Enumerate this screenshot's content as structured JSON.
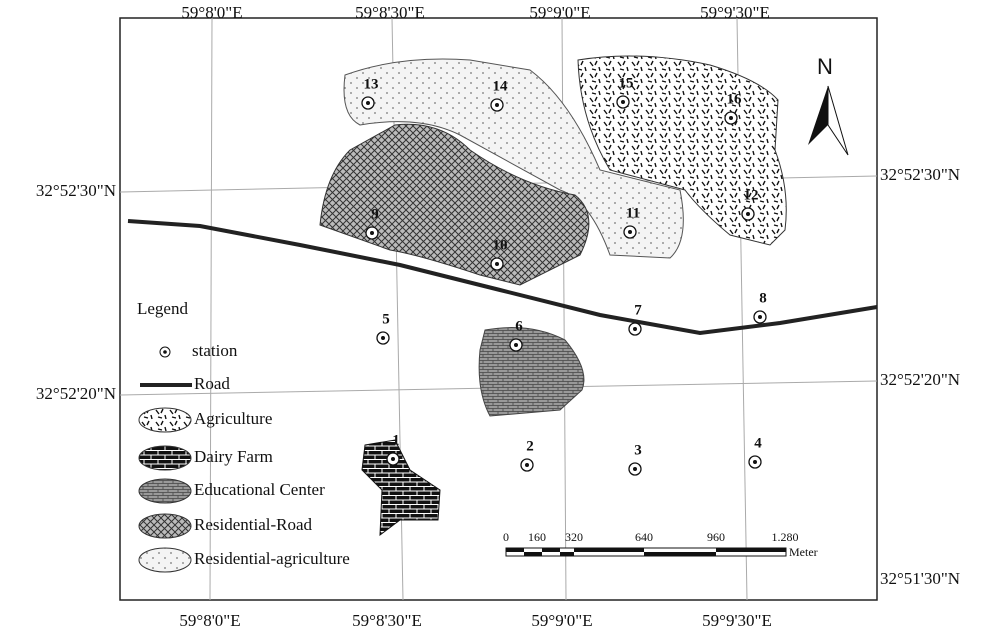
{
  "map": {
    "top_labels": [
      "59°8'0\"E",
      "59°8'30\"E",
      "59°9'0\"E",
      "59°9'30\"E"
    ],
    "bottom_labels": [
      "59°8'0\"E",
      "59°8'30\"E",
      "59°9'0\"E",
      "59°9'30\"E"
    ],
    "left_labels": [
      "32°52'30\"N",
      "32°52'20\"N"
    ],
    "right_labels": [
      "32°52'30\"N",
      "32°52'20\"N",
      "32°51'30\"N"
    ],
    "stations": [
      "1",
      "2",
      "3",
      "4",
      "5",
      "6",
      "7",
      "8",
      "9",
      "10",
      "11",
      "12",
      "13",
      "14",
      "15",
      "16"
    ],
    "north": "N",
    "legend": {
      "title": "Legend",
      "items": [
        "station",
        "Road",
        "Agriculture",
        "Dairy Farm",
        "Educational Center",
        "Residential-Road",
        "Residential-agriculture"
      ]
    },
    "scale": {
      "labels": [
        "0",
        "160",
        "320",
        "640",
        "960",
        "1.280"
      ],
      "unit": "Meter"
    }
  }
}
